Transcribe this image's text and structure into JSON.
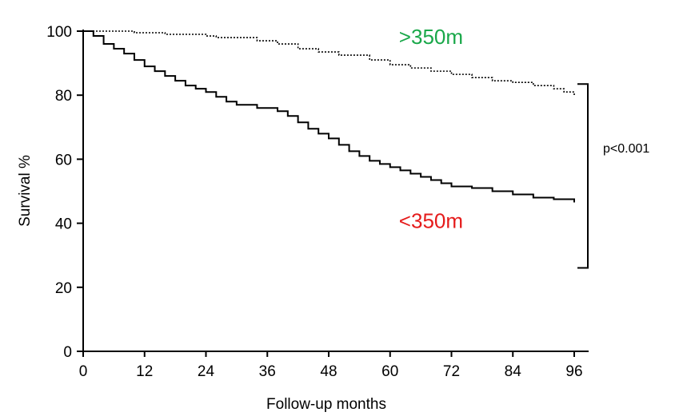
{
  "chart_data": {
    "type": "line",
    "title": "",
    "xlabel": "Follow-up months",
    "ylabel": "Survival %",
    "xlim": [
      0,
      96
    ],
    "ylim": [
      0,
      100
    ],
    "xticks": [
      0,
      12,
      24,
      36,
      48,
      60,
      72,
      84,
      96
    ],
    "yticks": [
      0,
      20,
      40,
      60,
      80,
      100
    ],
    "grid": false,
    "colors": {
      "axis": "#000000",
      "high_label": "#1aa84a",
      "low_label": "#e51b1b"
    },
    "series": [
      {
        "name": ">350m",
        "line_style": "dotted",
        "x": [
          0,
          10,
          16,
          24,
          26,
          34,
          38,
          42,
          46,
          50,
          56,
          60,
          64,
          68,
          72,
          76,
          80,
          84,
          88,
          92,
          94,
          96
        ],
        "y": [
          100,
          99.5,
          99,
          98.5,
          98,
          97,
          96,
          94.5,
          93.5,
          92.5,
          91,
          89.5,
          88.5,
          87.5,
          86.5,
          85.5,
          84.5,
          84,
          83,
          82,
          81,
          80
        ]
      },
      {
        "name": "<350m",
        "line_style": "solid",
        "x": [
          0,
          2,
          4,
          6,
          8,
          10,
          12,
          14,
          16,
          18,
          20,
          22,
          24,
          26,
          28,
          30,
          34,
          38,
          40,
          42,
          44,
          46,
          48,
          50,
          52,
          54,
          56,
          58,
          60,
          62,
          64,
          66,
          68,
          70,
          72,
          76,
          80,
          84,
          88,
          92,
          96
        ],
        "y": [
          100,
          98.5,
          96,
          94.5,
          93,
          91,
          89,
          87.5,
          86,
          84.5,
          83,
          82,
          81,
          79.5,
          78,
          77,
          76,
          75,
          73.5,
          71.5,
          69.5,
          68,
          66.5,
          64.5,
          62.5,
          61,
          59.5,
          58.5,
          57.5,
          56.5,
          55.5,
          54.5,
          53.5,
          52.5,
          51.5,
          51,
          50,
          49,
          48,
          47.5,
          46.5
        ]
      }
    ],
    "annotations": [
      {
        "id": "high",
        "text": ">350m",
        "x": 68,
        "y": 95
      },
      {
        "id": "low",
        "text": "<350m",
        "x": 68,
        "y": 42
      },
      {
        "id": "pvalue",
        "text": "p<0.001"
      }
    ]
  }
}
